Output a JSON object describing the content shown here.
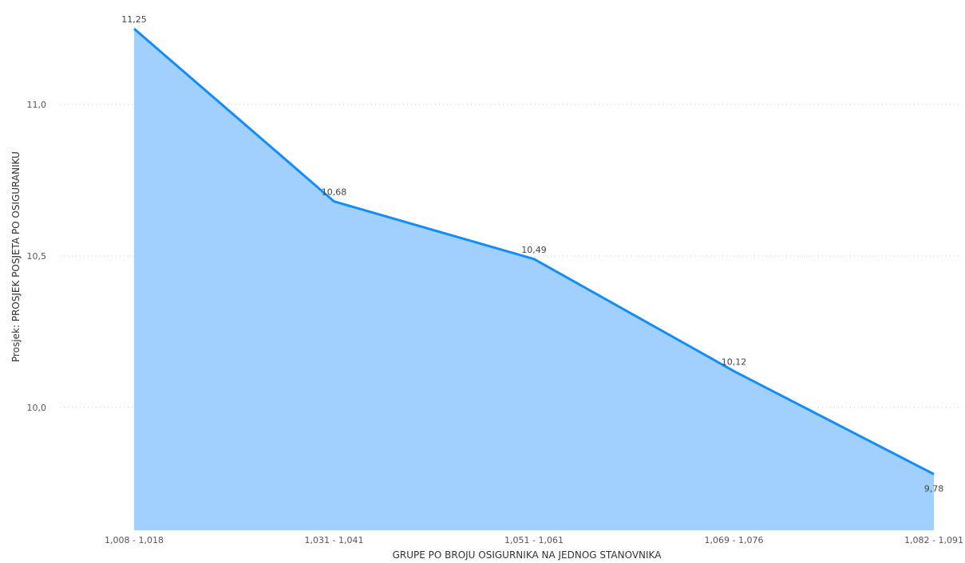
{
  "chart_data": {
    "type": "area",
    "title": "",
    "xlabel": "GRUPE PO BROJU OSIGURNIKA NA JEDNOG STANOVNIKA",
    "ylabel": "Prosjek: PROSJEK POSJETA PO OSIGURANIKU",
    "categories": [
      "1,008 - 1,018",
      "1,031 - 1,041",
      "1,051 - 1,061",
      "1,069 - 1,076",
      "1,082 - 1,091"
    ],
    "series": [
      {
        "values": [
          11.25,
          10.68,
          10.49,
          10.12,
          9.78
        ]
      }
    ],
    "data_labels": [
      "11,25",
      "10,68",
      "10,49",
      "10,12",
      "9,78"
    ],
    "yticks": [
      10.0,
      10.5,
      11.0
    ],
    "ytick_labels": [
      "10,0",
      "10,5",
      "11,0"
    ],
    "ylim": [
      9.62,
      11.5
    ],
    "grid": true,
    "colors": {
      "line": "#118DFF",
      "fill": "#A1D0FE"
    }
  }
}
